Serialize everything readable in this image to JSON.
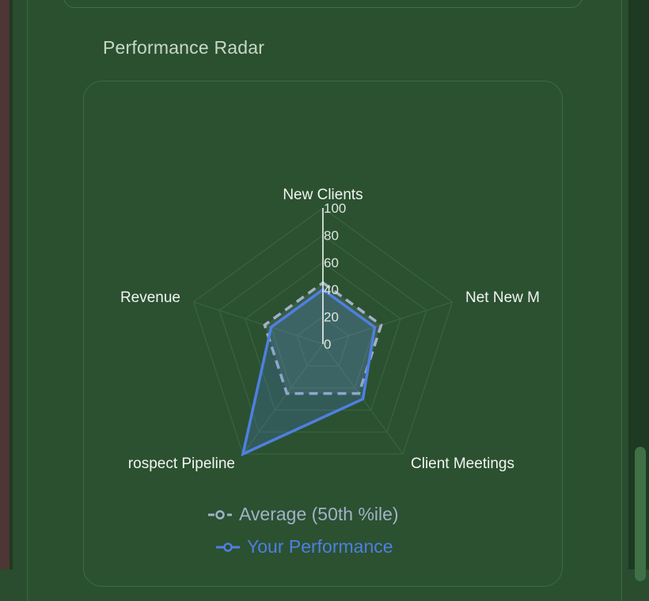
{
  "section": {
    "title": "Performance Radar"
  },
  "chart_data": {
    "type": "radar",
    "axes": [
      "New Clients",
      "Net New M",
      "Client Meetings",
      "Prospect Pipeline",
      "Revenue"
    ],
    "axis_labels_display": [
      "New Clients",
      "Net New M",
      "Client Meetings",
      "rospect Pipeline",
      "Revenue"
    ],
    "rlim": [
      0,
      100
    ],
    "ticks": [
      0,
      20,
      40,
      60,
      80,
      100
    ],
    "series": [
      {
        "name": "Average (50th %ile)",
        "values": [
          45,
          45,
          45,
          45,
          45
        ],
        "color": "#a3b1c7",
        "dashed": true
      },
      {
        "name": "Your Performance",
        "values": [
          40,
          40,
          50,
          100,
          40
        ],
        "color": "#4f7fe0",
        "dashed": false
      }
    ],
    "grid": true,
    "legend_position": "bottom"
  },
  "legend": {
    "average_label": "Average (50th %ile)",
    "performance_label": "Your Performance"
  },
  "colors": {
    "background": "#294d2e",
    "grid": "#3a6340",
    "average": "#a3b1c7",
    "performance": "#4f7fe0"
  }
}
